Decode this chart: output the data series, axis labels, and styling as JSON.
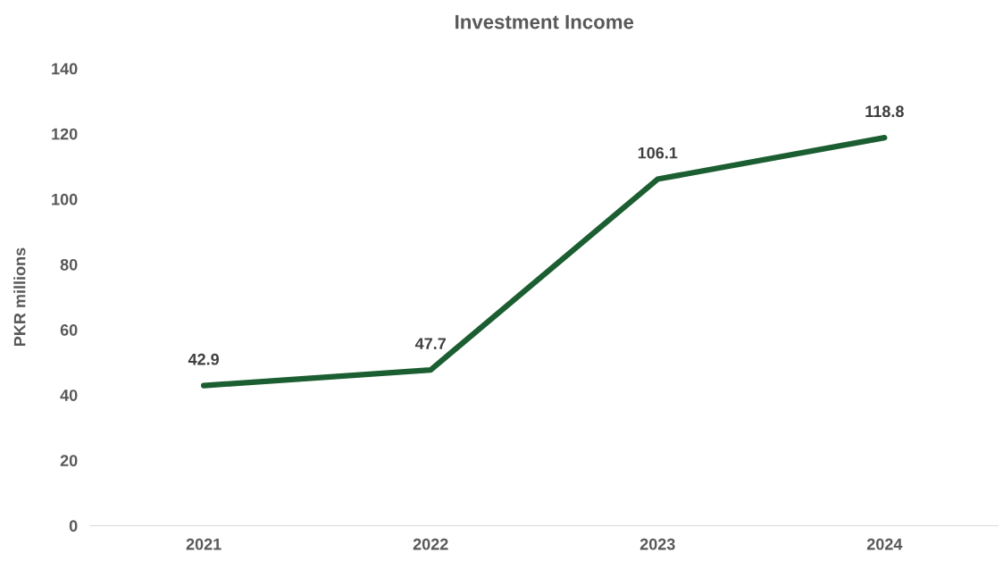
{
  "chart_data": {
    "type": "line",
    "title": "Investment Income",
    "ylabel": "PKR millions",
    "categories": [
      "2021",
      "2022",
      "2023",
      "2024"
    ],
    "series": [
      {
        "color": "#1b5e31",
        "values": [
          42.9,
          47.7,
          106.1,
          118.8
        ]
      }
    ],
    "ylim": [
      0,
      140
    ],
    "yticks": [
      0,
      20,
      40,
      60,
      80,
      100,
      120,
      140
    ],
    "grid": false,
    "legend": false,
    "marker": "none",
    "line_style": "solid",
    "data_labels": true
  }
}
